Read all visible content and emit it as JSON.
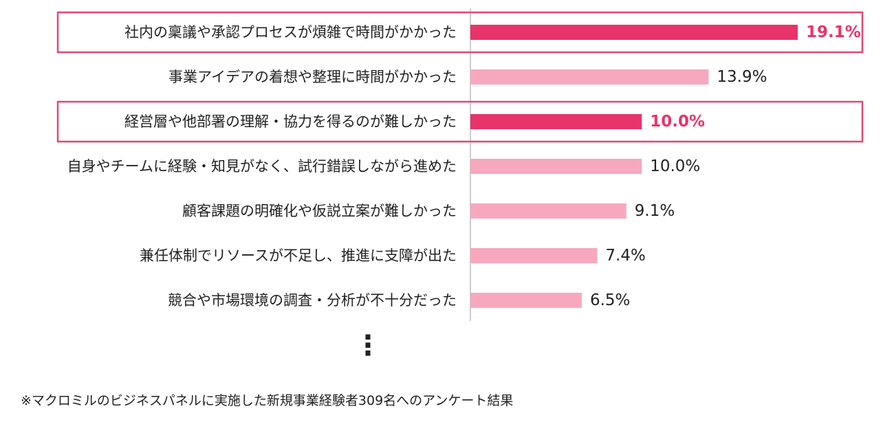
{
  "chart_data": {
    "type": "bar",
    "orientation": "horizontal",
    "categories": [
      "社内の稟議や承認プロセスが煩雑で時間がかかった",
      "事業アイデアの着想や整理に時間がかかった",
      "経営層や他部署の理解・協力を得るのが難しかった",
      "自身やチームに経験・知見がなく、試行錯誤しながら進めた",
      "顧客課題の明確化や仮説立案が難しかった",
      "兼任体制でリソースが不足し、推進に支障が出た",
      "競合や市場環境の調査・分析が不十分だった"
    ],
    "values": [
      19.1,
      13.9,
      10.0,
      10.0,
      9.1,
      7.4,
      6.5
    ],
    "value_labels": [
      "19.1%",
      "13.9%",
      "10.0%",
      "10.0%",
      "9.1%",
      "7.4%",
      "6.5%"
    ],
    "highlighted": [
      true,
      false,
      true,
      false,
      false,
      false,
      false
    ],
    "xlim": [
      0,
      20
    ],
    "continuation_marker": "⋮",
    "grid": false,
    "legend": "none",
    "colors": {
      "highlight_bar": "#e8336b",
      "normal_bar": "#f7a8bf",
      "highlight_text": "#e8336b",
      "normal_text": "#222222",
      "highlight_border": "#e04774",
      "axis": "#cccccc"
    }
  },
  "footnote": "※マクロミルのビジネスパネルに実施した新規事業経験者309名へのアンケート結果"
}
